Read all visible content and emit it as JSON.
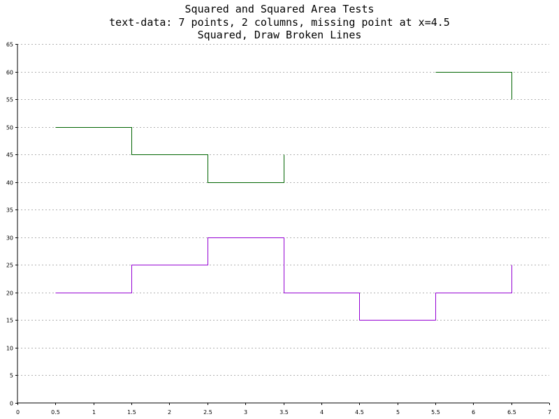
{
  "chart_data": {
    "type": "line",
    "title_lines": [
      "Squared and Squared Area Tests",
      "text-data: 7 points, 2 columns, missing point at x=4.5",
      "Squared, Draw Broken Lines"
    ],
    "xlabel": "",
    "ylabel": "",
    "xlim": [
      0,
      7
    ],
    "ylim": [
      0,
      65
    ],
    "x_ticks": [
      "0",
      "0.5",
      "1",
      "1.5",
      "2",
      "2.5",
      "3",
      "3.5",
      "4",
      "4.5",
      "5",
      "5.5",
      "6",
      "6.5",
      "7"
    ],
    "y_ticks": [
      "0",
      "5",
      "10",
      "15",
      "20",
      "25",
      "30",
      "35",
      "40",
      "45",
      "50",
      "55",
      "60",
      "65"
    ],
    "grid": "horizontal dashed",
    "step_style": "squared",
    "series": [
      {
        "color": "#006400",
        "x": [
          0.5,
          1.5,
          2.5,
          3.5,
          4.5,
          5.5,
          6.5
        ],
        "y": [
          50,
          45,
          40,
          45,
          null,
          60,
          55
        ]
      },
      {
        "color": "#9400d3",
        "x": [
          0.5,
          1.5,
          2.5,
          3.5,
          4.5,
          5.5,
          6.5
        ],
        "y": [
          20,
          25,
          30,
          20,
          15,
          20,
          25
        ]
      }
    ]
  }
}
